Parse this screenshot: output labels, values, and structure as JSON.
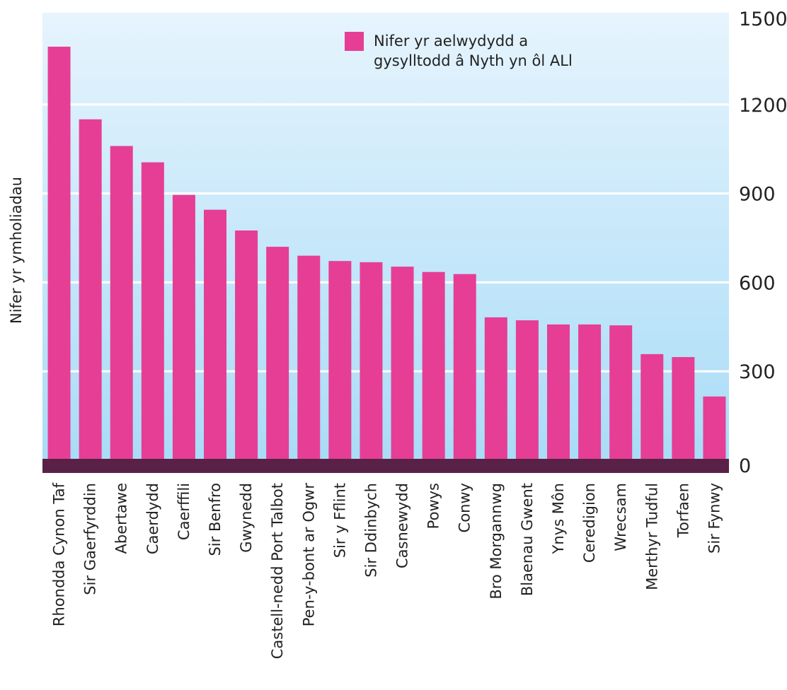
{
  "chart_data": {
    "type": "bar",
    "title": "",
    "xlabel": "",
    "ylabel": "Nifer yr ymholiadau",
    "ylim": [
      0,
      1500
    ],
    "yticks": [
      0,
      300,
      600,
      900,
      1200,
      1500
    ],
    "grid": true,
    "y_axis_side": "right",
    "legend": {
      "position": "top-right"
    },
    "categories": [
      "Rhondda Cynon Taf",
      "Sir Gaerfyrddin",
      "Abertawe",
      "Caerdydd",
      "Caerffili",
      "Sir Benfro",
      "Gwynedd",
      "Castell-nedd Port Talbot",
      "Pen-y-bont ar Ogwr",
      "Sir y Fflint",
      "Sir Ddinbych",
      "Casnewydd",
      "Powys",
      "Conwy",
      "Bro Morgannwg",
      "Blaenau Gwent",
      "Ynys Môn",
      "Ceredigion",
      "Wrecsam",
      "Merthyr Tudful",
      "Torfaen",
      "Sir Fynwy"
    ],
    "series": [
      {
        "name": "Nifer yr aelwydydd a gysylltodd â Nyth yn ôl ALl",
        "legend_lines": [
          "Nifer yr aelwydydd a",
          "gysylltodd â Nyth yn ôl ALl"
        ],
        "color": "#e63e95",
        "values": [
          1395,
          1150,
          1060,
          1005,
          895,
          845,
          775,
          720,
          690,
          672,
          668,
          653,
          635,
          628,
          482,
          472,
          458,
          458,
          455,
          358,
          348,
          215
        ]
      }
    ],
    "colors": {
      "bar": "#e63e95",
      "baseline": "#5a2146",
      "plot_top": "#e6f4fd",
      "plot_bottom": "#a9dcf7",
      "grid": "#ffffff",
      "text": "#222222"
    }
  }
}
